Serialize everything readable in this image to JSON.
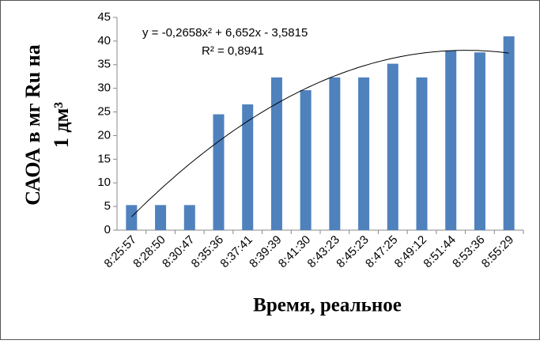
{
  "chart_data": {
    "type": "bar",
    "y_label_lines": [
      "САОА  в мг Ru на",
      "1 дм³"
    ],
    "x_label": "Время, реальное",
    "categories": [
      "8:25:57",
      "8:28:50",
      "8:30:47",
      "8:35:36",
      "8:37:41",
      "8:39:39",
      "8:41:30",
      "8:43:23",
      "8:45:23",
      "8:47:25",
      "8:49:12",
      "8:51:44",
      "8:53:36",
      "8:55:29"
    ],
    "values": [
      5.3,
      5.3,
      5.3,
      24.5,
      26.6,
      32.3,
      29.6,
      32.3,
      32.3,
      35.2,
      32.3,
      38,
      37.6,
      41
    ],
    "color": "#4f81bd",
    "ylim": [
      0,
      45
    ],
    "yticks": [
      0,
      5,
      10,
      15,
      20,
      25,
      30,
      35,
      40,
      45
    ],
    "grid": false,
    "trendline": {
      "equation": "y = -0,2658x² + 6,652x - 3,5815",
      "r2": "R² = 0,8941",
      "coefficients": [
        -0.2658,
        6.652,
        -3.5815
      ]
    }
  }
}
